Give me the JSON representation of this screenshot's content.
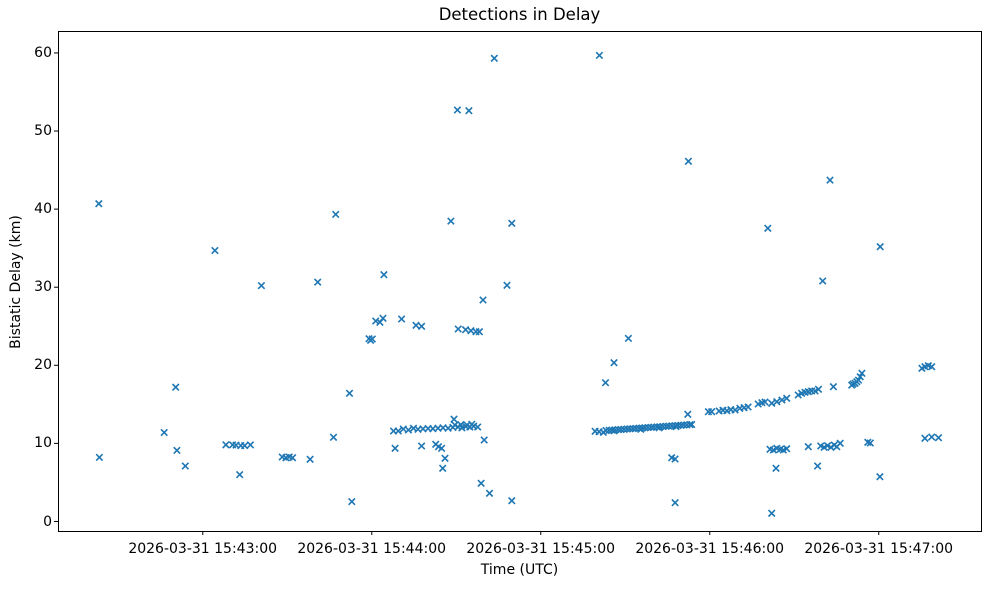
{
  "title": "Detections in Delay",
  "xlabel": "Time (UTC)",
  "ylabel": "Bistatic Delay (km)",
  "x_tick_labels": [
    "2026-03-31 15:43:00",
    "2026-03-31 15:44:00",
    "2026-03-31 15:45:00",
    "2026-03-31 15:46:00",
    "2026-03-31 15:47:00"
  ],
  "y_tick_labels": [
    "0",
    "10",
    "20",
    "30",
    "40",
    "50",
    "60"
  ],
  "marker_color": "#1f77b4",
  "chart_data": {
    "type": "scatter",
    "marker": "x",
    "title": "Detections in Delay",
    "xlabel": "Time (UTC)",
    "ylabel": "Bistatic Delay (km)",
    "series_name": "detections",
    "x_base_time": "2026-03-31 15:42:00 UTC",
    "x_unit": "seconds after 2026-03-31 15:42:00 UTC",
    "y_unit": "km",
    "grid": false,
    "legend": false,
    "xlim_seconds": [
      8.6,
      336.3
    ],
    "ylim_km": [
      -1.22,
      62.81
    ],
    "x_ticks_seconds": [
      60,
      120,
      180,
      240,
      300
    ],
    "y_ticks_km": [
      0,
      10,
      20,
      30,
      40,
      50,
      60
    ],
    "points": [
      [
        23.1,
        40.7
      ],
      [
        23.3,
        8.2
      ],
      [
        46.3,
        11.4
      ],
      [
        50.4,
        17.2
      ],
      [
        50.8,
        9.1
      ],
      [
        53.8,
        7.1
      ],
      [
        64.3,
        34.7
      ],
      [
        68.2,
        9.82
      ],
      [
        70.6,
        9.8
      ],
      [
        71.8,
        9.78
      ],
      [
        73.1,
        6.0
      ],
      [
        73.5,
        9.72
      ],
      [
        74.9,
        9.72
      ],
      [
        76.9,
        9.8
      ],
      [
        80.8,
        30.2
      ],
      [
        88.2,
        8.26
      ],
      [
        89.5,
        8.17
      ],
      [
        90.7,
        8.26
      ],
      [
        91.9,
        8.17
      ],
      [
        98.1,
        7.96
      ],
      [
        100.8,
        30.66
      ],
      [
        106.4,
        10.78
      ],
      [
        107.2,
        39.33
      ],
      [
        112.1,
        16.41
      ],
      [
        112.9,
        2.54
      ],
      [
        119.0,
        23.4
      ],
      [
        119.6,
        23.2
      ],
      [
        120.2,
        23.37
      ],
      [
        121.4,
        25.67
      ],
      [
        122.9,
        25.5
      ],
      [
        124.0,
        26.02
      ],
      [
        124.3,
        31.6
      ],
      [
        127.7,
        11.59
      ],
      [
        128.3,
        9.37
      ],
      [
        129.4,
        11.59
      ],
      [
        130.6,
        25.93
      ],
      [
        131.2,
        11.84
      ],
      [
        133.0,
        11.71
      ],
      [
        134.8,
        11.93
      ],
      [
        135.7,
        25.12
      ],
      [
        136.4,
        11.8
      ],
      [
        137.7,
        24.99
      ],
      [
        137.7,
        9.67
      ],
      [
        138.2,
        11.85
      ],
      [
        140.0,
        11.9
      ],
      [
        141.7,
        11.88
      ],
      [
        142.7,
        9.88
      ],
      [
        143.5,
        11.95
      ],
      [
        143.7,
        9.58
      ],
      [
        144.8,
        9.37
      ],
      [
        145.2,
        6.81
      ],
      [
        145.3,
        12.0
      ],
      [
        146.0,
        8.09
      ],
      [
        147.1,
        11.95
      ],
      [
        148.1,
        38.47
      ],
      [
        148.8,
        12.05
      ],
      [
        149.2,
        13.1
      ],
      [
        149.5,
        12.35
      ],
      [
        150.4,
        52.69
      ],
      [
        150.6,
        12.1
      ],
      [
        150.7,
        24.65
      ],
      [
        151.6,
        12.4
      ],
      [
        152.0,
        12.0
      ],
      [
        153.3,
        24.56
      ],
      [
        153.4,
        12.15
      ],
      [
        153.8,
        12.35
      ],
      [
        154.5,
        52.6
      ],
      [
        154.8,
        12.1
      ],
      [
        155.2,
        24.43
      ],
      [
        155.5,
        12.45
      ],
      [
        156.2,
        12.2
      ],
      [
        157.0,
        24.3
      ],
      [
        157.6,
        12.1
      ],
      [
        158.2,
        24.3
      ],
      [
        158.8,
        4.89
      ],
      [
        159.5,
        28.36
      ],
      [
        159.9,
        10.43
      ],
      [
        161.8,
        3.61
      ],
      [
        163.5,
        59.31
      ],
      [
        168.0,
        30.24
      ],
      [
        169.7,
        38.18
      ],
      [
        169.7,
        2.66
      ],
      [
        199.3,
        11.55
      ],
      [
        200.7,
        11.5
      ],
      [
        200.8,
        59.69
      ],
      [
        202.2,
        11.42
      ],
      [
        203.0,
        17.77
      ],
      [
        203.2,
        11.65
      ],
      [
        204.3,
        11.68
      ],
      [
        205.3,
        11.7
      ],
      [
        206.0,
        20.33
      ],
      [
        206.0,
        11.6
      ],
      [
        206.4,
        11.73
      ],
      [
        207.5,
        11.76
      ],
      [
        208.5,
        11.78
      ],
      [
        209.6,
        11.81
      ],
      [
        210.7,
        11.84
      ],
      [
        211.1,
        23.45
      ],
      [
        211.7,
        11.87
      ],
      [
        212.8,
        11.89
      ],
      [
        213.8,
        11.92
      ],
      [
        214.9,
        11.95
      ],
      [
        215.5,
        11.8
      ],
      [
        216.0,
        11.97
      ],
      [
        217.0,
        12.0
      ],
      [
        218.1,
        12.03
      ],
      [
        219.2,
        12.05
      ],
      [
        220.2,
        12.08
      ],
      [
        221.3,
        12.11
      ],
      [
        222.0,
        12.0
      ],
      [
        222.3,
        12.13
      ],
      [
        223.4,
        12.16
      ],
      [
        224.5,
        12.19
      ],
      [
        225.5,
        12.21
      ],
      [
        226.5,
        8.17
      ],
      [
        226.6,
        12.24
      ],
      [
        227.7,
        8.0
      ],
      [
        227.7,
        2.41
      ],
      [
        227.7,
        12.27
      ],
      [
        228.0,
        12.15
      ],
      [
        228.7,
        12.29
      ],
      [
        229.8,
        12.32
      ],
      [
        230.8,
        12.35
      ],
      [
        231.9,
        12.37
      ],
      [
        232.2,
        13.72
      ],
      [
        232.4,
        46.12
      ],
      [
        233.0,
        12.4
      ],
      [
        233.6,
        12.42
      ],
      [
        239.5,
        14.06
      ],
      [
        240.7,
        14.06
      ],
      [
        243.3,
        14.15
      ],
      [
        244.7,
        14.24
      ],
      [
        246.1,
        14.19
      ],
      [
        247.5,
        14.31
      ],
      [
        249.0,
        14.27
      ],
      [
        250.7,
        14.49
      ],
      [
        252.2,
        14.57
      ],
      [
        253.6,
        14.66
      ],
      [
        257.2,
        15.04
      ],
      [
        258.5,
        15.21
      ],
      [
        259.6,
        15.3
      ],
      [
        260.6,
        37.54
      ],
      [
        261.4,
        9.24
      ],
      [
        262.0,
        15.13
      ],
      [
        262.0,
        1.05
      ],
      [
        262.6,
        9.15
      ],
      [
        263.5,
        6.81
      ],
      [
        263.8,
        15.34
      ],
      [
        263.8,
        9.37
      ],
      [
        265.0,
        9.24
      ],
      [
        265.6,
        15.56
      ],
      [
        266.1,
        9.15
      ],
      [
        267.3,
        15.77
      ],
      [
        267.3,
        9.32
      ],
      [
        271.4,
        16.2
      ],
      [
        272.6,
        16.41
      ],
      [
        273.8,
        16.54
      ],
      [
        275.0,
        16.62
      ],
      [
        275.0,
        9.58
      ],
      [
        276.2,
        16.71
      ],
      [
        277.4,
        16.71
      ],
      [
        278.3,
        7.11
      ],
      [
        278.6,
        16.92
      ],
      [
        279.4,
        9.67
      ],
      [
        280.1,
        30.79
      ],
      [
        280.6,
        9.5
      ],
      [
        281.8,
        9.7
      ],
      [
        282.7,
        43.72
      ],
      [
        283.0,
        9.5
      ],
      [
        283.9,
        17.26
      ],
      [
        284.2,
        9.79
      ],
      [
        285.1,
        9.58
      ],
      [
        286.3,
        10.01
      ],
      [
        290.4,
        17.47
      ],
      [
        290.9,
        17.6
      ],
      [
        291.6,
        17.69
      ],
      [
        292.2,
        17.9
      ],
      [
        292.8,
        18.11
      ],
      [
        293.4,
        18.53
      ],
      [
        294.0,
        18.97
      ],
      [
        296.1,
        10.14
      ],
      [
        297.0,
        10.05
      ],
      [
        300.4,
        5.74
      ],
      [
        300.5,
        35.19
      ],
      [
        315.3,
        19.62
      ],
      [
        316.4,
        19.82
      ],
      [
        316.4,
        10.65
      ],
      [
        317.6,
        19.95
      ],
      [
        318.8,
        19.82
      ],
      [
        318.8,
        10.82
      ],
      [
        321.2,
        10.73
      ]
    ]
  }
}
